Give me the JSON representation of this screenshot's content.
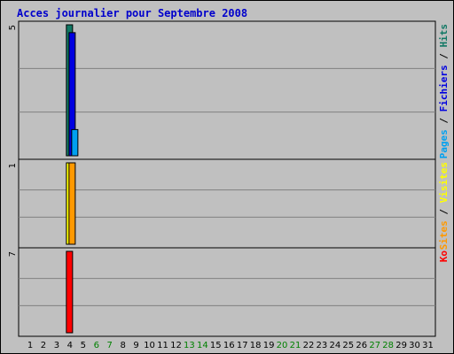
{
  "title": "Acces journalier pour Septembre 2008",
  "chart_data": {
    "type": "bar",
    "title": "Acces journalier pour Septembre 2008",
    "categories": [
      "1",
      "2",
      "3",
      "4",
      "5",
      "6",
      "7",
      "8",
      "9",
      "10",
      "11",
      "12",
      "13",
      "14",
      "15",
      "16",
      "17",
      "18",
      "19",
      "20",
      "21",
      "22",
      "23",
      "24",
      "25",
      "26",
      "27",
      "28",
      "29",
      "30",
      "31"
    ],
    "weekend_days": [
      "6",
      "7",
      "13",
      "14",
      "20",
      "21",
      "27",
      "28"
    ],
    "colors": {
      "weekday_label": "#000000",
      "weekend_label": "#008000",
      "hits": "#117864",
      "fichiers": "#0000e0",
      "pages": "#00a0f0",
      "visites": "#ffff00",
      "sites": "#ff9900",
      "ko": "#ff0000",
      "background": "#c0c0c0"
    },
    "panels": [
      {
        "id": "hits-panel",
        "scale_label": "5",
        "max": 5,
        "legend": [
          {
            "text": "Pages",
            "color": "#00a0f0"
          },
          {
            "text": " / ",
            "color": "#000000"
          },
          {
            "text": "Fichiers",
            "color": "#0000e0"
          },
          {
            "text": " / ",
            "color": "#000000"
          },
          {
            "text": "Hits",
            "color": "#117864"
          }
        ],
        "series": [
          {
            "name": "Hits",
            "color": "#117864",
            "values": {
              "4": 5
            }
          },
          {
            "name": "Fichiers",
            "color": "#0000e0",
            "values": {
              "4": 4.7
            }
          },
          {
            "name": "Pages",
            "color": "#00a0f0",
            "values": {
              "4": 1
            }
          }
        ]
      },
      {
        "id": "visits-panel",
        "scale_label": "1",
        "max": 1,
        "legend": [
          {
            "text": "Sites",
            "color": "#ff9900"
          },
          {
            "text": " / ",
            "color": "#000000"
          },
          {
            "text": "Visites",
            "color": "#ffff00"
          }
        ],
        "series": [
          {
            "name": "Visites",
            "color": "#ffff00",
            "values": {
              "4": 1
            }
          },
          {
            "name": "Sites",
            "color": "#ff9900",
            "values": {
              "4": 1
            }
          }
        ]
      },
      {
        "id": "ko-panel",
        "scale_label": "7",
        "max": 7,
        "legend": [
          {
            "text": "Ko",
            "color": "#ff0000"
          }
        ],
        "series": [
          {
            "name": "Ko",
            "color": "#ff0000",
            "values": {
              "4": 7
            }
          }
        ]
      }
    ]
  }
}
